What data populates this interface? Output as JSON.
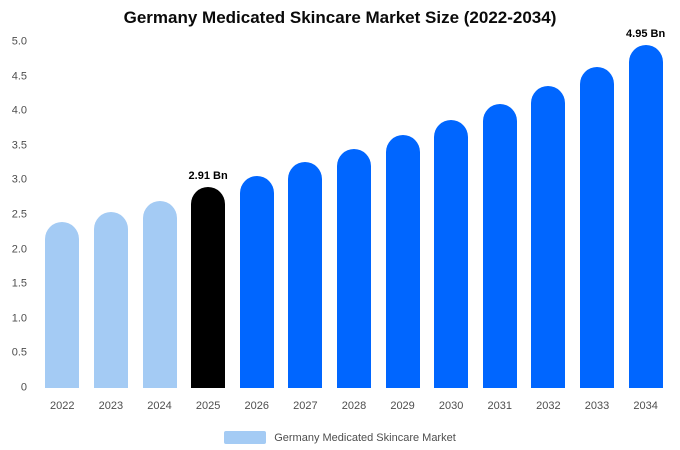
{
  "chart_data": {
    "type": "bar",
    "title": "Germany Medicated Skincare Market Size (2022-2034)",
    "unit": "Bn",
    "categories": [
      "2022",
      "2023",
      "2024",
      "2025",
      "2026",
      "2027",
      "2028",
      "2029",
      "2030",
      "2031",
      "2032",
      "2033",
      "2034"
    ],
    "values": [
      2.4,
      2.55,
      2.7,
      2.91,
      3.07,
      3.26,
      3.45,
      3.65,
      3.88,
      4.11,
      4.37,
      4.64,
      4.95
    ],
    "bar_colors": [
      "#a4cbf4",
      "#a4cbf4",
      "#a4cbf4",
      "#000000",
      "#0066ff",
      "#0066ff",
      "#0066ff",
      "#0066ff",
      "#0066ff",
      "#0066ff",
      "#0066ff",
      "#0066ff",
      "#0066ff"
    ],
    "annotations": [
      {
        "category": "2025",
        "text": "2.91 Bn"
      },
      {
        "category": "2034",
        "text": "4.95 Bn"
      }
    ],
    "xlabel": "",
    "ylabel": "",
    "ylim": [
      0,
      5
    ],
    "ytick_values": [
      0,
      0.5,
      1,
      1.5,
      2,
      2.5,
      3,
      3.5,
      4,
      4.5,
      5
    ],
    "yticks": [
      "0",
      "0.5",
      "1.0",
      "1.5",
      "2.0",
      "2.5",
      "3.0",
      "3.5",
      "4.0",
      "4.5",
      "5.0"
    ],
    "grid": false,
    "legend": {
      "label": "Germany Medicated Skincare Market",
      "swatch_color": "#a4cbf4",
      "position": "bottom"
    }
  }
}
